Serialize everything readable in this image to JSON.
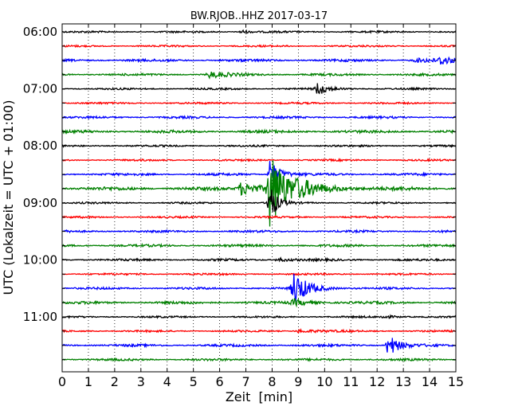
{
  "chart_data": {
    "type": "line",
    "title": "BW.RJOB..HHZ 2017-03-17",
    "xlabel": "Zeit  [min]",
    "ylabel": "UTC (Lokalzeit = UTC + 01:00)",
    "xlim": [
      0,
      15
    ],
    "x_ticks": [
      0,
      1,
      2,
      3,
      4,
      5,
      6,
      7,
      8,
      9,
      10,
      11,
      12,
      13,
      14,
      15
    ],
    "grid": "vertical dotted",
    "row_minutes": 15,
    "colors": [
      "#000000",
      "#ff0000",
      "#0000ff",
      "#008000"
    ],
    "rows": [
      {
        "time": "06:00",
        "label": "06:00",
        "color": "#000000",
        "amp": 1.0,
        "events": [
          {
            "t": 6.8,
            "a": 3.0,
            "d": 0.25
          }
        ]
      },
      {
        "time": "06:15",
        "label": "",
        "color": "#ff0000",
        "amp": 1.0,
        "events": []
      },
      {
        "time": "06:30",
        "label": "",
        "color": "#0000ff",
        "amp": 1.3,
        "events": [
          {
            "t": 13.5,
            "a": 2.0,
            "d": 1.0
          },
          {
            "t": 14.4,
            "a": 5.5,
            "d": 0.35
          }
        ]
      },
      {
        "time": "06:45",
        "label": "",
        "color": "#008000",
        "amp": 1.2,
        "events": [
          {
            "t": 5.6,
            "a": 4.0,
            "d": 0.6
          }
        ]
      },
      {
        "time": "07:00",
        "label": "07:00",
        "color": "#000000",
        "amp": 1.0,
        "events": [
          {
            "t": 9.7,
            "a": 8.0,
            "d": 0.4
          }
        ]
      },
      {
        "time": "07:15",
        "label": "",
        "color": "#ff0000",
        "amp": 1.0,
        "events": []
      },
      {
        "time": "07:30",
        "label": "",
        "color": "#0000ff",
        "amp": 1.2,
        "events": []
      },
      {
        "time": "07:45",
        "label": "",
        "color": "#008000",
        "amp": 1.5,
        "events": []
      },
      {
        "time": "08:00",
        "label": "08:00",
        "color": "#000000",
        "amp": 1.0,
        "events": []
      },
      {
        "time": "08:15",
        "label": "",
        "color": "#ff0000",
        "amp": 1.0,
        "events": []
      },
      {
        "time": "08:30",
        "label": "",
        "color": "#0000ff",
        "amp": 1.3,
        "events": [
          {
            "t": 7.9,
            "a": 18.0,
            "d": 0.35
          }
        ]
      },
      {
        "time": "08:45",
        "label": "",
        "color": "#008000",
        "amp": 1.8,
        "events": [
          {
            "t": 6.8,
            "a": 8.0,
            "d": 0.8
          },
          {
            "t": 7.9,
            "a": 48.0,
            "d": 0.6
          },
          {
            "t": 9.0,
            "a": 5.0,
            "d": 1.2
          }
        ]
      },
      {
        "time": "09:00",
        "label": "09:00",
        "color": "#000000",
        "amp": 1.0,
        "events": [
          {
            "t": 7.85,
            "a": 30.0,
            "d": 0.25
          }
        ]
      },
      {
        "time": "09:15",
        "label": "",
        "color": "#ff0000",
        "amp": 1.0,
        "events": []
      },
      {
        "time": "09:30",
        "label": "",
        "color": "#0000ff",
        "amp": 1.2,
        "events": []
      },
      {
        "time": "09:45",
        "label": "",
        "color": "#008000",
        "amp": 1.3,
        "events": []
      },
      {
        "time": "10:00",
        "label": "10:00",
        "color": "#000000",
        "amp": 1.2,
        "events": [
          {
            "t": 8.2,
            "a": 2.5,
            "d": 0.5
          }
        ]
      },
      {
        "time": "10:15",
        "label": "",
        "color": "#ff0000",
        "amp": 1.0,
        "events": []
      },
      {
        "time": "10:30",
        "label": "",
        "color": "#0000ff",
        "amp": 1.2,
        "events": [
          {
            "t": 8.8,
            "a": 22.0,
            "d": 0.5
          }
        ]
      },
      {
        "time": "10:45",
        "label": "",
        "color": "#008000",
        "amp": 1.4,
        "events": [
          {
            "t": 8.8,
            "a": 4.0,
            "d": 0.6
          }
        ]
      },
      {
        "time": "11:00",
        "label": "11:00",
        "color": "#000000",
        "amp": 1.0,
        "events": [
          {
            "t": 12.2,
            "a": 2.0,
            "d": 0.5
          }
        ]
      },
      {
        "time": "11:15",
        "label": "",
        "color": "#ff0000",
        "amp": 1.0,
        "events": [
          {
            "t": 9.0,
            "a": 2.0,
            "d": 0.8
          }
        ]
      },
      {
        "time": "11:30",
        "label": "",
        "color": "#0000ff",
        "amp": 1.3,
        "events": [
          {
            "t": 12.4,
            "a": 16.0,
            "d": 0.35
          }
        ]
      },
      {
        "time": "11:45",
        "label": "",
        "color": "#008000",
        "amp": 1.2,
        "events": []
      }
    ]
  }
}
